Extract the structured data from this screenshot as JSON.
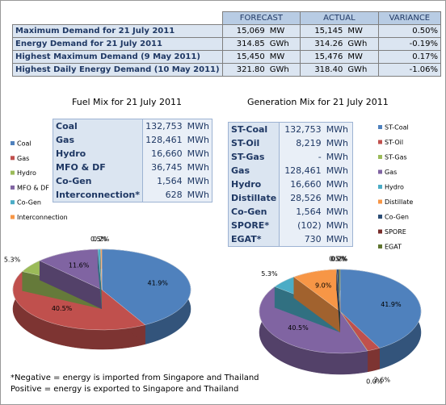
{
  "summary_table": {
    "header": [
      "FORECAST",
      "ACTUAL",
      "VARIANCE"
    ],
    "rows": [
      [
        "Maximum Demand for 21 July 2011",
        "15,069",
        "MW",
        "15,145",
        "MW",
        "0.50%"
      ],
      [
        "Energy Demand for 21 July 2011",
        "314.85",
        "GWh",
        "314.26",
        "GWh",
        "-0.19%"
      ],
      [
        "Highest Maximum Demand (9 May 2011)",
        "15,450",
        "MW",
        "15,476",
        "MW",
        "0.17%"
      ],
      [
        "Highest Daily Energy Demand (10 May 2011)",
        "321.80",
        "GWh",
        "318.40",
        "GWh",
        "-1.06%"
      ]
    ]
  },
  "fuel_table": {
    "rows": [
      [
        "Coal",
        "132,753",
        "MWh"
      ],
      [
        "Gas",
        "128,461",
        "MWh"
      ],
      [
        "Hydro",
        "16,660",
        "MWh"
      ],
      [
        "MFO & DF",
        "36,745",
        "MWh"
      ],
      [
        "Co-Gen",
        "1,564",
        "MWh"
      ],
      [
        "Interconnection*",
        "628",
        "MWh"
      ]
    ]
  },
  "generation_table": {
    "rows": [
      [
        "ST-Coal",
        "132,753",
        "MWh"
      ],
      [
        "ST-Oil",
        "8,219",
        "MWh"
      ],
      [
        "ST-Gas",
        "-",
        "MWh"
      ],
      [
        "Gas",
        "128,461",
        "MWh"
      ],
      [
        "Hydro",
        "16,660",
        "MWh"
      ],
      [
        "Distillate",
        "28,526",
        "MWh"
      ],
      [
        "Co-Gen",
        "1,564",
        "MWh"
      ],
      [
        "SPORE*",
        "(102)",
        "MWh"
      ],
      [
        "EGAT*",
        "730",
        "MWh"
      ]
    ]
  },
  "footnote": [
    "*Negative = energy is imported from Singapore and Thailand",
    "Positive = energy is exported to Singapore and Thailand"
  ],
  "chart_data": [
    {
      "type": "pie",
      "title": "Fuel Mix for 21 July 2011",
      "categories": [
        "Coal",
        "Gas",
        "Hydro",
        "MFO & DF",
        "Co-Gen",
        "Interconnection"
      ],
      "values": [
        41.9,
        40.5,
        5.3,
        11.6,
        0.5,
        0.2
      ],
      "value_labels": [
        "41.9%",
        "40.5%",
        "5.3%",
        "11.6%",
        "0.5%",
        "0.2%"
      ],
      "colors": [
        "#4f81bd",
        "#c0504d",
        "#9bbb59",
        "#8064a2",
        "#4bacc6",
        "#f79646"
      ]
    },
    {
      "type": "pie",
      "title": "Generation Mix  for 21 July 2011",
      "categories": [
        "ST-Coal",
        "ST-Oil",
        "ST-Gas",
        "Gas",
        "Hydro",
        "Distillate",
        "Co-Gen",
        "SPORE",
        "EGAT"
      ],
      "values": [
        41.9,
        2.6,
        0.0,
        40.5,
        5.3,
        9.0,
        0.5,
        0.0,
        0.2
      ],
      "value_labels": [
        "41.9%",
        "2.6%",
        "0.0%",
        "40.5%",
        "5.3%",
        "9.0%",
        "0.5%",
        "0.0%",
        "0.2%"
      ],
      "colors": [
        "#4f81bd",
        "#c0504d",
        "#9bbb59",
        "#8064a2",
        "#4bacc6",
        "#f79646",
        "#2c4d75",
        "#772c2a",
        "#5f7530"
      ]
    }
  ]
}
